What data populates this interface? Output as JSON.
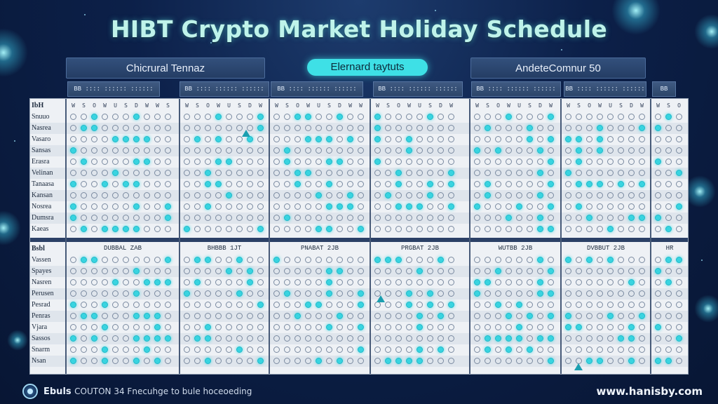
{
  "title": "HIBT Crypto Market Holiday Schedule",
  "header": {
    "left_box": "Chicrural Tennaz",
    "center_pill": "Elernard taytuts",
    "right_box": "AndeteComnur 50"
  },
  "column_heads": [
    "BB  :::: :::::: ::::::",
    "BB  :::: :::::: ::::::",
    "BB  :::: :::::: ::::::",
    "BB  :::: :::::: ::::::",
    "BB  :::: :::::: ::::::",
    "BB  :::: :::::: ::::::",
    "BB"
  ],
  "top_section": {
    "corner_label": "IbH",
    "row_labels": [
      "Snuuo",
      "Nasrea",
      "Vasaro",
      "Sansas",
      "Erasra",
      "Velinan",
      "Tanaasa",
      "Kansan",
      "Nosrea",
      "Dumsra",
      "Kaeas"
    ]
  },
  "bottom_section": {
    "corner_label": "Bsbl",
    "month_labels": [
      "DUBBAL ZAB",
      "BHBBB 1JT",
      "PNABAT 2JB",
      "PRGBAT 2JB",
      "WUTBB 2JB",
      "DVBBUT 2JB",
      "HR"
    ],
    "row_labels": [
      "Vassen",
      "Spayes",
      "Nasren",
      "Perusen",
      "Pesrad",
      "Penras",
      "Vjara",
      "Sassos",
      "Snarm",
      "Nsan"
    ]
  },
  "weekday_letters": [
    "W",
    "S",
    "O",
    "W",
    "U",
    "S",
    "D",
    "W"
  ],
  "colors": {
    "holiday": "#39d4e0",
    "accent": "#3ee0e6",
    "title": "#bff3ea"
  },
  "footer": {
    "brand": "Ebuls",
    "tagline": "COUTON 34 Fnecuhge to bule hoceoeding",
    "url": "www.hanisby.com"
  },
  "icons": [
    "globe-logo-icon",
    "triangle-marker-icon"
  ]
}
